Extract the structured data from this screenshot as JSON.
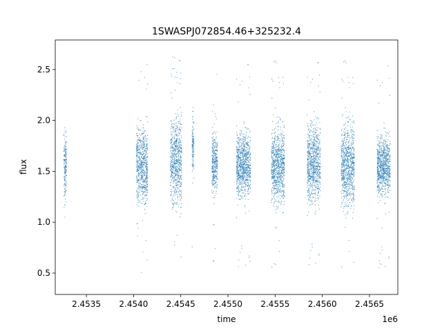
{
  "chart_data": {
    "type": "scatter",
    "title": "1SWASPJ072854.46+325232.4",
    "xlabel": "time",
    "ylabel": "flux",
    "x_offset_label": "1e6",
    "xlim": [
      2453170,
      2456800
    ],
    "ylim": [
      0.29,
      2.79
    ],
    "x_ticks": [
      2453500,
      2454000,
      2454500,
      2455000,
      2455500,
      2456000,
      2456500
    ],
    "x_tick_labels": [
      "2.4535",
      "2.4540",
      "2.4545",
      "2.4550",
      "2.4555",
      "2.4560",
      "2.4565"
    ],
    "y_ticks": [
      0.5,
      1.0,
      1.5,
      2.0,
      2.5
    ],
    "y_tick_labels": [
      "0.5",
      "1.0",
      "1.5",
      "2.0",
      "2.5"
    ],
    "grid": false,
    "marker_color": "#1f77b4",
    "observing_seasons": [
      {
        "x_start": 2453260,
        "x_end": 2453290,
        "y_center": 1.57,
        "y_spread": 0.22
      },
      {
        "x_start": 2454030,
        "x_end": 2454150,
        "y_center": 1.55,
        "y_spread": 0.26
      },
      {
        "x_start": 2454390,
        "x_end": 2454510,
        "y_center": 1.6,
        "y_spread": 0.3
      },
      {
        "x_start": 2454620,
        "x_end": 2454640,
        "y_center": 1.75,
        "y_spread": 0.2
      },
      {
        "x_start": 2454830,
        "x_end": 2454890,
        "y_center": 1.58,
        "y_spread": 0.2
      },
      {
        "x_start": 2455090,
        "x_end": 2455240,
        "y_center": 1.56,
        "y_spread": 0.22
      },
      {
        "x_start": 2455460,
        "x_end": 2455600,
        "y_center": 1.55,
        "y_spread": 0.25
      },
      {
        "x_start": 2455840,
        "x_end": 2455980,
        "y_center": 1.58,
        "y_spread": 0.27
      },
      {
        "x_start": 2456200,
        "x_end": 2456340,
        "y_center": 1.55,
        "y_spread": 0.28
      },
      {
        "x_start": 2456580,
        "x_end": 2456720,
        "y_center": 1.55,
        "y_spread": 0.2
      }
    ]
  }
}
